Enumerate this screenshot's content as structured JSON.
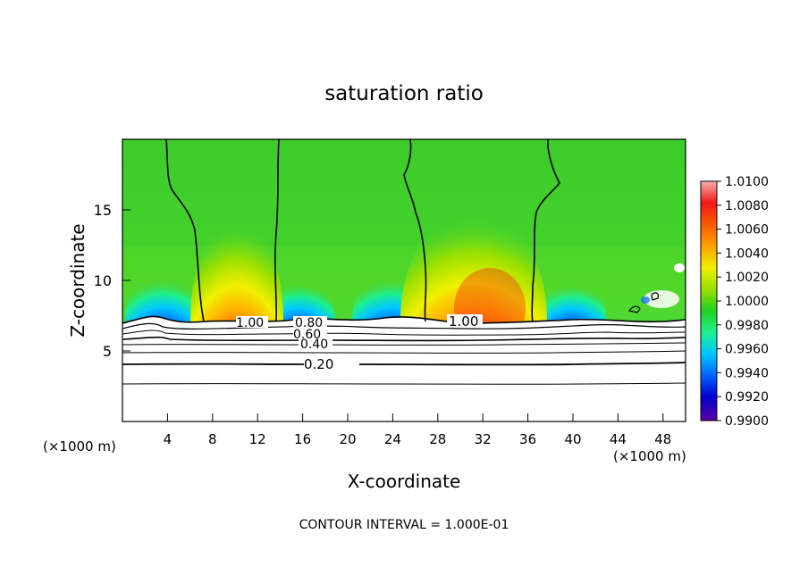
{
  "chart_data": {
    "type": "heatmap",
    "title": "saturation ratio",
    "xlabel": "X-coordinate",
    "ylabel": "Z-coordinate",
    "x_unit": "(×1000 m)",
    "y_unit": "(×1000 m)",
    "xlim": [
      0,
      50
    ],
    "ylim": [
      0,
      20
    ],
    "x_ticks": [
      4,
      8,
      12,
      16,
      20,
      24,
      28,
      32,
      36,
      40,
      44,
      48
    ],
    "y_ticks": [
      5,
      10,
      15
    ],
    "colorbar": {
      "min": 0.99,
      "max": 1.01,
      "labels": [
        "1.0100",
        "1.0080",
        "1.0060",
        "1.0040",
        "1.0020",
        "1.0000",
        "0.9980",
        "0.9960",
        "0.9940",
        "0.9920",
        "0.9900"
      ],
      "colors": [
        "#f29a9a",
        "#f01010",
        "#f85a00",
        "#ffa000",
        "#f0f000",
        "#9ae000",
        "#22d022",
        "#1ef08c",
        "#00c8ff",
        "#0064ff",
        "#0000d0",
        "#5a00a0"
      ]
    },
    "contour_labels": [
      {
        "text": "1.00",
        "x": 9.2,
        "z": 7.0
      },
      {
        "text": "0.80",
        "x": 16.0,
        "z": 6.9
      },
      {
        "text": "0.60",
        "x": 16.4,
        "z": 6.3
      },
      {
        "text": "0.40",
        "x": 16.3,
        "z": 5.6
      },
      {
        "text": "0.20",
        "x": 16.5,
        "z": 4.1
      },
      {
        "text": "1.00",
        "x": 30.3,
        "z": 7.0
      }
    ],
    "contour_interval": "CONTOUR INTERVAL = 1.000E-01"
  }
}
